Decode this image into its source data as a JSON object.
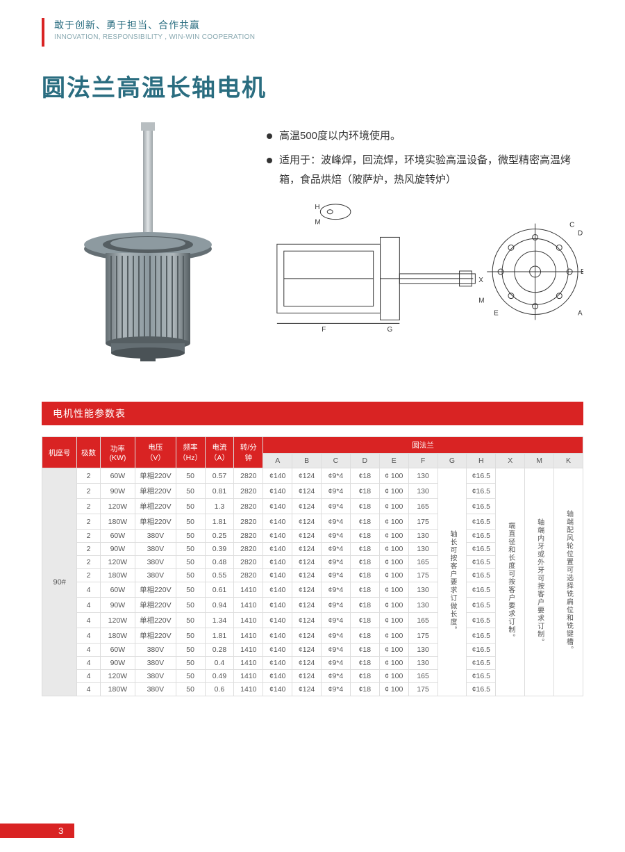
{
  "header": {
    "cn": "敢于创新、勇于担当、合作共赢",
    "en": "INNOVATION, RESPONSIBILITY , WIN-WIN COOPERATION"
  },
  "title": "圆法兰高温长轴电机",
  "bullets": [
    "高温500度以内环境使用。",
    "适用于：波峰焊，回流焊，环境实验高温设备，微型精密高温烤箱，食品烘焙（陂萨炉，热风旋转炉）"
  ],
  "section_title": "电机性能参数表",
  "page_number": "3",
  "colors": {
    "accent": "#d92323",
    "teal": "#2a6d80",
    "motor_body": "#8d9aa0",
    "motor_dark": "#6b767b",
    "motor_light": "#c5cdd0"
  },
  "table": {
    "group_head": "圆法兰",
    "head1": [
      "机座号",
      "极数",
      "功率\n(KW)",
      "电压\n（V）",
      "频率\n（Hz）",
      "电流\n（A）",
      "转/分\n钟"
    ],
    "head2": [
      "A",
      "B",
      "C",
      "D",
      "E",
      "F",
      "G",
      "H",
      "X",
      "M",
      "K"
    ],
    "col_widths_pct": [
      6,
      4,
      6,
      7,
      5,
      5,
      5,
      5,
      5,
      5,
      5,
      5,
      5,
      5,
      5,
      5,
      5,
      5,
      6
    ],
    "seat": "90#",
    "note_G": "轴长可按客户要求订做长度。",
    "note_X": "端直径和长度可按客户要求订制。",
    "note_M": "轴端内牙或外牙可按客户要求订制。",
    "note_K": "轴端配风轮位置可选择铣扁位和铣键槽。",
    "rows": [
      [
        "2",
        "60W",
        "单相220V",
        "50",
        "0.57",
        "2820",
        "¢140",
        "¢124",
        "¢9*4",
        "¢18",
        "¢ 100",
        "130",
        "¢16.5"
      ],
      [
        "2",
        "90W",
        "单相220V",
        "50",
        "0.81",
        "2820",
        "¢140",
        "¢124",
        "¢9*4",
        "¢18",
        "¢ 100",
        "130",
        "¢16.5"
      ],
      [
        "2",
        "120W",
        "单相220V",
        "50",
        "1.3",
        "2820",
        "¢140",
        "¢124",
        "¢9*4",
        "¢18",
        "¢ 100",
        "165",
        "¢16.5"
      ],
      [
        "2",
        "180W",
        "单相220V",
        "50",
        "1.81",
        "2820",
        "¢140",
        "¢124",
        "¢9*4",
        "¢18",
        "¢ 100",
        "175",
        "¢16.5"
      ],
      [
        "2",
        "60W",
        "380V",
        "50",
        "0.25",
        "2820",
        "¢140",
        "¢124",
        "¢9*4",
        "¢18",
        "¢ 100",
        "130",
        "¢16.5"
      ],
      [
        "2",
        "90W",
        "380V",
        "50",
        "0.39",
        "2820",
        "¢140",
        "¢124",
        "¢9*4",
        "¢18",
        "¢ 100",
        "130",
        "¢16.5"
      ],
      [
        "2",
        "120W",
        "380V",
        "50",
        "0.48",
        "2820",
        "¢140",
        "¢124",
        "¢9*4",
        "¢18",
        "¢ 100",
        "165",
        "¢16.5"
      ],
      [
        "2",
        "180W",
        "380V",
        "50",
        "0.55",
        "2820",
        "¢140",
        "¢124",
        "¢9*4",
        "¢18",
        "¢ 100",
        "175",
        "¢16.5"
      ],
      [
        "4",
        "60W",
        "单相220V",
        "50",
        "0.61",
        "1410",
        "¢140",
        "¢124",
        "¢9*4",
        "¢18",
        "¢ 100",
        "130",
        "¢16.5"
      ],
      [
        "4",
        "90W",
        "单相220V",
        "50",
        "0.94",
        "1410",
        "¢140",
        "¢124",
        "¢9*4",
        "¢18",
        "¢ 100",
        "130",
        "¢16.5"
      ],
      [
        "4",
        "120W",
        "单相220V",
        "50",
        "1.34",
        "1410",
        "¢140",
        "¢124",
        "¢9*4",
        "¢18",
        "¢ 100",
        "165",
        "¢16.5"
      ],
      [
        "4",
        "180W",
        "单相220V",
        "50",
        "1.81",
        "1410",
        "¢140",
        "¢124",
        "¢9*4",
        "¢18",
        "¢ 100",
        "175",
        "¢16.5"
      ],
      [
        "4",
        "60W",
        "380V",
        "50",
        "0.28",
        "1410",
        "¢140",
        "¢124",
        "¢9*4",
        "¢18",
        "¢ 100",
        "130",
        "¢16.5"
      ],
      [
        "4",
        "90W",
        "380V",
        "50",
        "0.4",
        "1410",
        "¢140",
        "¢124",
        "¢9*4",
        "¢18",
        "¢ 100",
        "130",
        "¢16.5"
      ],
      [
        "4",
        "120W",
        "380V",
        "50",
        "0.49",
        "1410",
        "¢140",
        "¢124",
        "¢9*4",
        "¢18",
        "¢ 100",
        "165",
        "¢16.5"
      ],
      [
        "4",
        "180W",
        "380V",
        "50",
        "0.6",
        "1410",
        "¢140",
        "¢124",
        "¢9*4",
        "¢18",
        "¢ 100",
        "175",
        "¢16.5"
      ]
    ]
  }
}
